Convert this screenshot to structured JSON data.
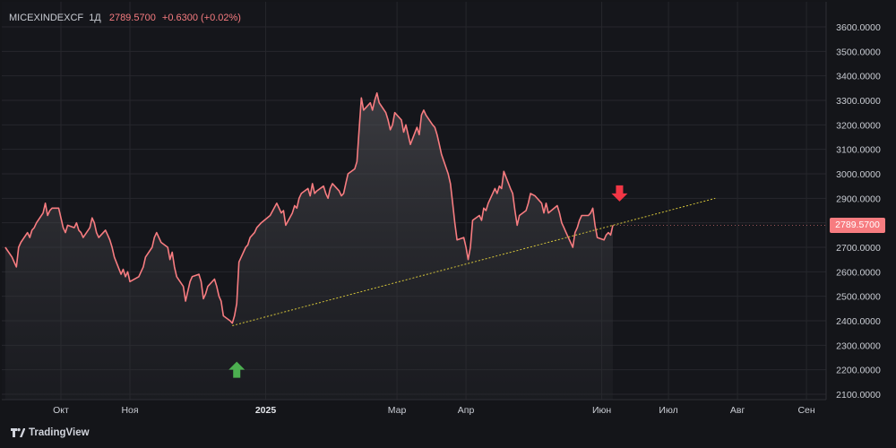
{
  "header": {
    "symbol": "MICEXINDEXCF",
    "timeframe": "1Д",
    "last": "2789.5700",
    "change": "+0.6300 (+0.02%)"
  },
  "price_tag": "2789.5700",
  "branding": "TradingView",
  "colors": {
    "line": "#f77c80",
    "trendline": "#d4c43a",
    "arrow_up": "#4caf50",
    "arrow_down": "#f23645",
    "background": "#141519",
    "text": "#c9ccd3"
  },
  "chart_data": {
    "type": "area",
    "grid": true,
    "ylim": [
      2100,
      3600
    ],
    "y_ticks": [
      "3600.0000",
      "3500.0000",
      "3400.0000",
      "3300.0000",
      "3200.0000",
      "3100.0000",
      "3000.0000",
      "2900.0000",
      "2800.0000",
      "2700.0000",
      "2600.0000",
      "2500.0000",
      "2400.0000",
      "2300.0000",
      "2200.0000",
      "2100.0000"
    ],
    "y_tick_values": [
      3600,
      3500,
      3400,
      3300,
      3200,
      3100,
      3000,
      2900,
      2800,
      2700,
      2600,
      2500,
      2400,
      2300,
      2200,
      2100
    ],
    "x_ticks": [
      {
        "label": "Окт",
        "date": "2024-10-01",
        "bold": false
      },
      {
        "label": "Ноя",
        "date": "2024-11-01",
        "bold": false
      },
      {
        "label": "2025",
        "date": "2025-01-01",
        "bold": true
      },
      {
        "label": "Мар",
        "date": "2025-03-01",
        "bold": false
      },
      {
        "label": "Апр",
        "date": "2025-04-01",
        "bold": false
      },
      {
        "label": "Июн",
        "date": "2025-06-01",
        "bold": false
      },
      {
        "label": "Июл",
        "date": "2025-07-01",
        "bold": false
      },
      {
        "label": "Авг",
        "date": "2025-08-01",
        "bold": false
      },
      {
        "label": "Сен",
        "date": "2025-09-01",
        "bold": false
      }
    ],
    "series": [
      {
        "points": [
          [
            "2024-09-06",
            2700
          ],
          [
            "2024-09-09",
            2660
          ],
          [
            "2024-09-10",
            2640
          ],
          [
            "2024-09-11",
            2620
          ],
          [
            "2024-09-12",
            2700
          ],
          [
            "2024-09-13",
            2720
          ],
          [
            "2024-09-16",
            2760
          ],
          [
            "2024-09-17",
            2740
          ],
          [
            "2024-09-18",
            2770
          ],
          [
            "2024-09-19",
            2780
          ],
          [
            "2024-09-20",
            2800
          ],
          [
            "2024-09-23",
            2840
          ],
          [
            "2024-09-24",
            2880
          ],
          [
            "2024-09-25",
            2830
          ],
          [
            "2024-09-26",
            2850
          ],
          [
            "2024-09-27",
            2860
          ],
          [
            "2024-09-30",
            2860
          ],
          [
            "2024-10-01",
            2820
          ],
          [
            "2024-10-02",
            2780
          ],
          [
            "2024-10-03",
            2760
          ],
          [
            "2024-10-04",
            2790
          ],
          [
            "2024-10-07",
            2780
          ],
          [
            "2024-10-08",
            2800
          ],
          [
            "2024-10-09",
            2770
          ],
          [
            "2024-10-10",
            2760
          ],
          [
            "2024-10-11",
            2740
          ],
          [
            "2024-10-14",
            2780
          ],
          [
            "2024-10-15",
            2820
          ],
          [
            "2024-10-16",
            2800
          ],
          [
            "2024-10-17",
            2760
          ],
          [
            "2024-10-18",
            2740
          ],
          [
            "2024-10-21",
            2770
          ],
          [
            "2024-10-22",
            2750
          ],
          [
            "2024-10-23",
            2730
          ],
          [
            "2024-10-24",
            2700
          ],
          [
            "2024-10-25",
            2660
          ],
          [
            "2024-10-28",
            2590
          ],
          [
            "2024-10-29",
            2610
          ],
          [
            "2024-10-30",
            2580
          ],
          [
            "2024-10-31",
            2600
          ],
          [
            "2024-11-01",
            2560
          ],
          [
            "2024-11-05",
            2580
          ],
          [
            "2024-11-06",
            2600
          ],
          [
            "2024-11-07",
            2620
          ],
          [
            "2024-11-08",
            2660
          ],
          [
            "2024-11-11",
            2700
          ],
          [
            "2024-11-12",
            2740
          ],
          [
            "2024-11-13",
            2760
          ],
          [
            "2024-11-14",
            2740
          ],
          [
            "2024-11-15",
            2720
          ],
          [
            "2024-11-18",
            2700
          ],
          [
            "2024-11-19",
            2650
          ],
          [
            "2024-11-20",
            2680
          ],
          [
            "2024-11-21",
            2620
          ],
          [
            "2024-11-22",
            2580
          ],
          [
            "2024-11-25",
            2540
          ],
          [
            "2024-11-26",
            2480
          ],
          [
            "2024-11-27",
            2520
          ],
          [
            "2024-11-28",
            2560
          ],
          [
            "2024-11-29",
            2580
          ],
          [
            "2024-12-02",
            2590
          ],
          [
            "2024-12-03",
            2560
          ],
          [
            "2024-12-04",
            2490
          ],
          [
            "2024-12-05",
            2510
          ],
          [
            "2024-12-06",
            2540
          ],
          [
            "2024-12-09",
            2570
          ],
          [
            "2024-12-10",
            2540
          ],
          [
            "2024-12-11",
            2500
          ],
          [
            "2024-12-12",
            2480
          ],
          [
            "2024-12-13",
            2420
          ],
          [
            "2024-12-16",
            2400
          ],
          [
            "2024-12-17",
            2390
          ],
          [
            "2024-12-18",
            2420
          ],
          [
            "2024-12-19",
            2470
          ],
          [
            "2024-12-20",
            2640
          ],
          [
            "2024-12-23",
            2700
          ],
          [
            "2024-12-24",
            2710
          ],
          [
            "2024-12-25",
            2740
          ],
          [
            "2024-12-26",
            2750
          ],
          [
            "2024-12-27",
            2760
          ],
          [
            "2024-12-28",
            2780
          ],
          [
            "2024-12-30",
            2800
          ],
          [
            "2025-01-03",
            2830
          ],
          [
            "2025-01-06",
            2880
          ],
          [
            "2025-01-08",
            2840
          ],
          [
            "2025-01-09",
            2850
          ],
          [
            "2025-01-10",
            2790
          ],
          [
            "2025-01-13",
            2840
          ],
          [
            "2025-01-14",
            2870
          ],
          [
            "2025-01-15",
            2860
          ],
          [
            "2025-01-16",
            2900
          ],
          [
            "2025-01-17",
            2920
          ],
          [
            "2025-01-20",
            2940
          ],
          [
            "2025-01-21",
            2910
          ],
          [
            "2025-01-22",
            2960
          ],
          [
            "2025-01-23",
            2920
          ],
          [
            "2025-01-24",
            2930
          ],
          [
            "2025-01-27",
            2950
          ],
          [
            "2025-01-28",
            2920
          ],
          [
            "2025-01-29",
            2900
          ],
          [
            "2025-01-30",
            2940
          ],
          [
            "2025-01-31",
            2960
          ],
          [
            "2025-02-03",
            2930
          ],
          [
            "2025-02-04",
            2910
          ],
          [
            "2025-02-05",
            2920
          ],
          [
            "2025-02-06",
            2960
          ],
          [
            "2025-02-07",
            3000
          ],
          [
            "2025-02-10",
            3020
          ],
          [
            "2025-02-11",
            3050
          ],
          [
            "2025-02-12",
            3180
          ],
          [
            "2025-02-13",
            3310
          ],
          [
            "2025-02-14",
            3260
          ],
          [
            "2025-02-17",
            3290
          ],
          [
            "2025-02-18",
            3260
          ],
          [
            "2025-02-19",
            3300
          ],
          [
            "2025-02-20",
            3330
          ],
          [
            "2025-02-21",
            3290
          ],
          [
            "2025-02-24",
            3250
          ],
          [
            "2025-02-25",
            3220
          ],
          [
            "2025-02-26",
            3180
          ],
          [
            "2025-02-27",
            3200
          ],
          [
            "2025-02-28",
            3250
          ],
          [
            "2025-03-03",
            3220
          ],
          [
            "2025-03-04",
            3170
          ],
          [
            "2025-03-05",
            3200
          ],
          [
            "2025-03-06",
            3160
          ],
          [
            "2025-03-07",
            3120
          ],
          [
            "2025-03-10",
            3190
          ],
          [
            "2025-03-11",
            3160
          ],
          [
            "2025-03-12",
            3240
          ],
          [
            "2025-03-13",
            3260
          ],
          [
            "2025-03-14",
            3240
          ],
          [
            "2025-03-17",
            3200
          ],
          [
            "2025-03-18",
            3190
          ],
          [
            "2025-03-19",
            3160
          ],
          [
            "2025-03-20",
            3120
          ],
          [
            "2025-03-21",
            3080
          ],
          [
            "2025-03-24",
            3000
          ],
          [
            "2025-03-25",
            2960
          ],
          [
            "2025-03-26",
            2880
          ],
          [
            "2025-03-27",
            2800
          ],
          [
            "2025-03-28",
            2730
          ],
          [
            "2025-03-31",
            2740
          ],
          [
            "2025-04-01",
            2700
          ],
          [
            "2025-04-02",
            2650
          ],
          [
            "2025-04-03",
            2700
          ],
          [
            "2025-04-04",
            2810
          ],
          [
            "2025-04-07",
            2830
          ],
          [
            "2025-04-08",
            2810
          ],
          [
            "2025-04-09",
            2860
          ],
          [
            "2025-04-10",
            2850
          ],
          [
            "2025-04-11",
            2880
          ],
          [
            "2025-04-14",
            2940
          ],
          [
            "2025-04-15",
            2920
          ],
          [
            "2025-04-16",
            2950
          ],
          [
            "2025-04-17",
            2940
          ],
          [
            "2025-04-18",
            3010
          ],
          [
            "2025-04-21",
            2940
          ],
          [
            "2025-04-22",
            2920
          ],
          [
            "2025-04-23",
            2850
          ],
          [
            "2025-04-24",
            2790
          ],
          [
            "2025-04-25",
            2830
          ],
          [
            "2025-04-28",
            2850
          ],
          [
            "2025-04-29",
            2880
          ],
          [
            "2025-04-30",
            2920
          ],
          [
            "2025-05-02",
            2910
          ],
          [
            "2025-05-05",
            2880
          ],
          [
            "2025-05-06",
            2840
          ],
          [
            "2025-05-07",
            2880
          ],
          [
            "2025-05-08",
            2840
          ],
          [
            "2025-05-12",
            2870
          ],
          [
            "2025-05-13",
            2840
          ],
          [
            "2025-05-14",
            2800
          ],
          [
            "2025-05-15",
            2780
          ],
          [
            "2025-05-16",
            2760
          ],
          [
            "2025-05-19",
            2700
          ],
          [
            "2025-05-20",
            2760
          ],
          [
            "2025-05-21",
            2780
          ],
          [
            "2025-05-22",
            2810
          ],
          [
            "2025-05-23",
            2830
          ],
          [
            "2025-05-26",
            2830
          ],
          [
            "2025-05-27",
            2840
          ],
          [
            "2025-05-28",
            2860
          ],
          [
            "2025-05-29",
            2790
          ],
          [
            "2025-05-30",
            2740
          ],
          [
            "2025-06-02",
            2730
          ],
          [
            "2025-06-03",
            2750
          ],
          [
            "2025-06-04",
            2760
          ],
          [
            "2025-06-05",
            2750
          ],
          [
            "2025-06-06",
            2789.57
          ]
        ]
      }
    ],
    "trendline": {
      "from": [
        "2024-12-17",
        2380
      ],
      "to": [
        "2025-07-22",
        2900
      ]
    },
    "annotations": [
      {
        "type": "arrow-up",
        "date": "2024-12-19",
        "value": 2200
      },
      {
        "type": "arrow-down",
        "date": "2025-06-09",
        "value": 2920
      }
    ]
  }
}
